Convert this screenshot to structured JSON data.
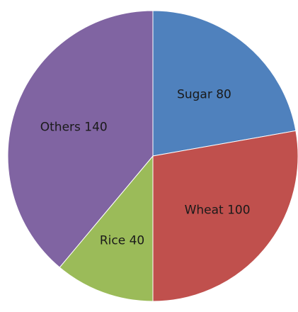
{
  "chart_data": {
    "type": "pie",
    "title": "",
    "series": [
      {
        "categories": [
          "Sugar",
          "Wheat",
          "Rice",
          "Others"
        ],
        "values": [
          80,
          100,
          40,
          140
        ],
        "labels": [
          "Sugar 80",
          "Wheat 100",
          "Rice  40",
          "Others 140"
        ],
        "colors": [
          "#4f81bd",
          "#c0504d",
          "#9bbb59",
          "#8064a2"
        ]
      }
    ],
    "start_angle": "12 o'clock",
    "direction": "clockwise",
    "legend": "none"
  }
}
